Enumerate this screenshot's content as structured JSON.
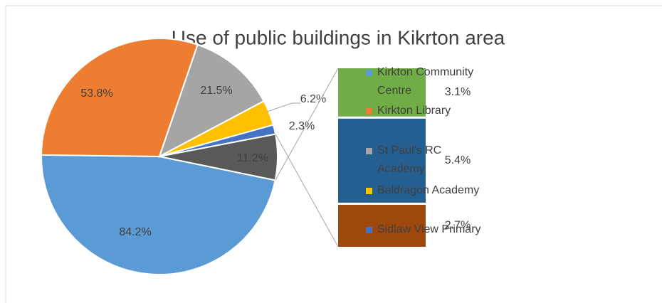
{
  "chart_data": {
    "type": "pie-of-bar",
    "title": "Use of public buildings in Kikrton area",
    "categories": [
      "Kirkton Community Centre",
      "Kirkton Library",
      "St Paul's RC Academy",
      "Baldragon Academy",
      "Sidlaw View Primary",
      null
    ],
    "values": [
      84.2,
      53.8,
      21.5,
      6.2,
      2.3,
      11.2
    ],
    "value_labels": [
      "84.2%",
      "53.8%",
      "21.5%",
      "6.2%",
      "2.3%",
      "11.2%"
    ],
    "colors": [
      "#5b9bd5",
      "#ed7d31",
      "#a5a5a5",
      "#ffc000",
      "#4472c4",
      "#595959"
    ],
    "bar_values": [
      3.1,
      5.4,
      2.7
    ],
    "bar_value_labels": [
      "3.1%",
      "5.4%",
      "2.7%"
    ],
    "bar_colors": [
      "#70ad47",
      "#255e91",
      "#9e480e"
    ]
  }
}
